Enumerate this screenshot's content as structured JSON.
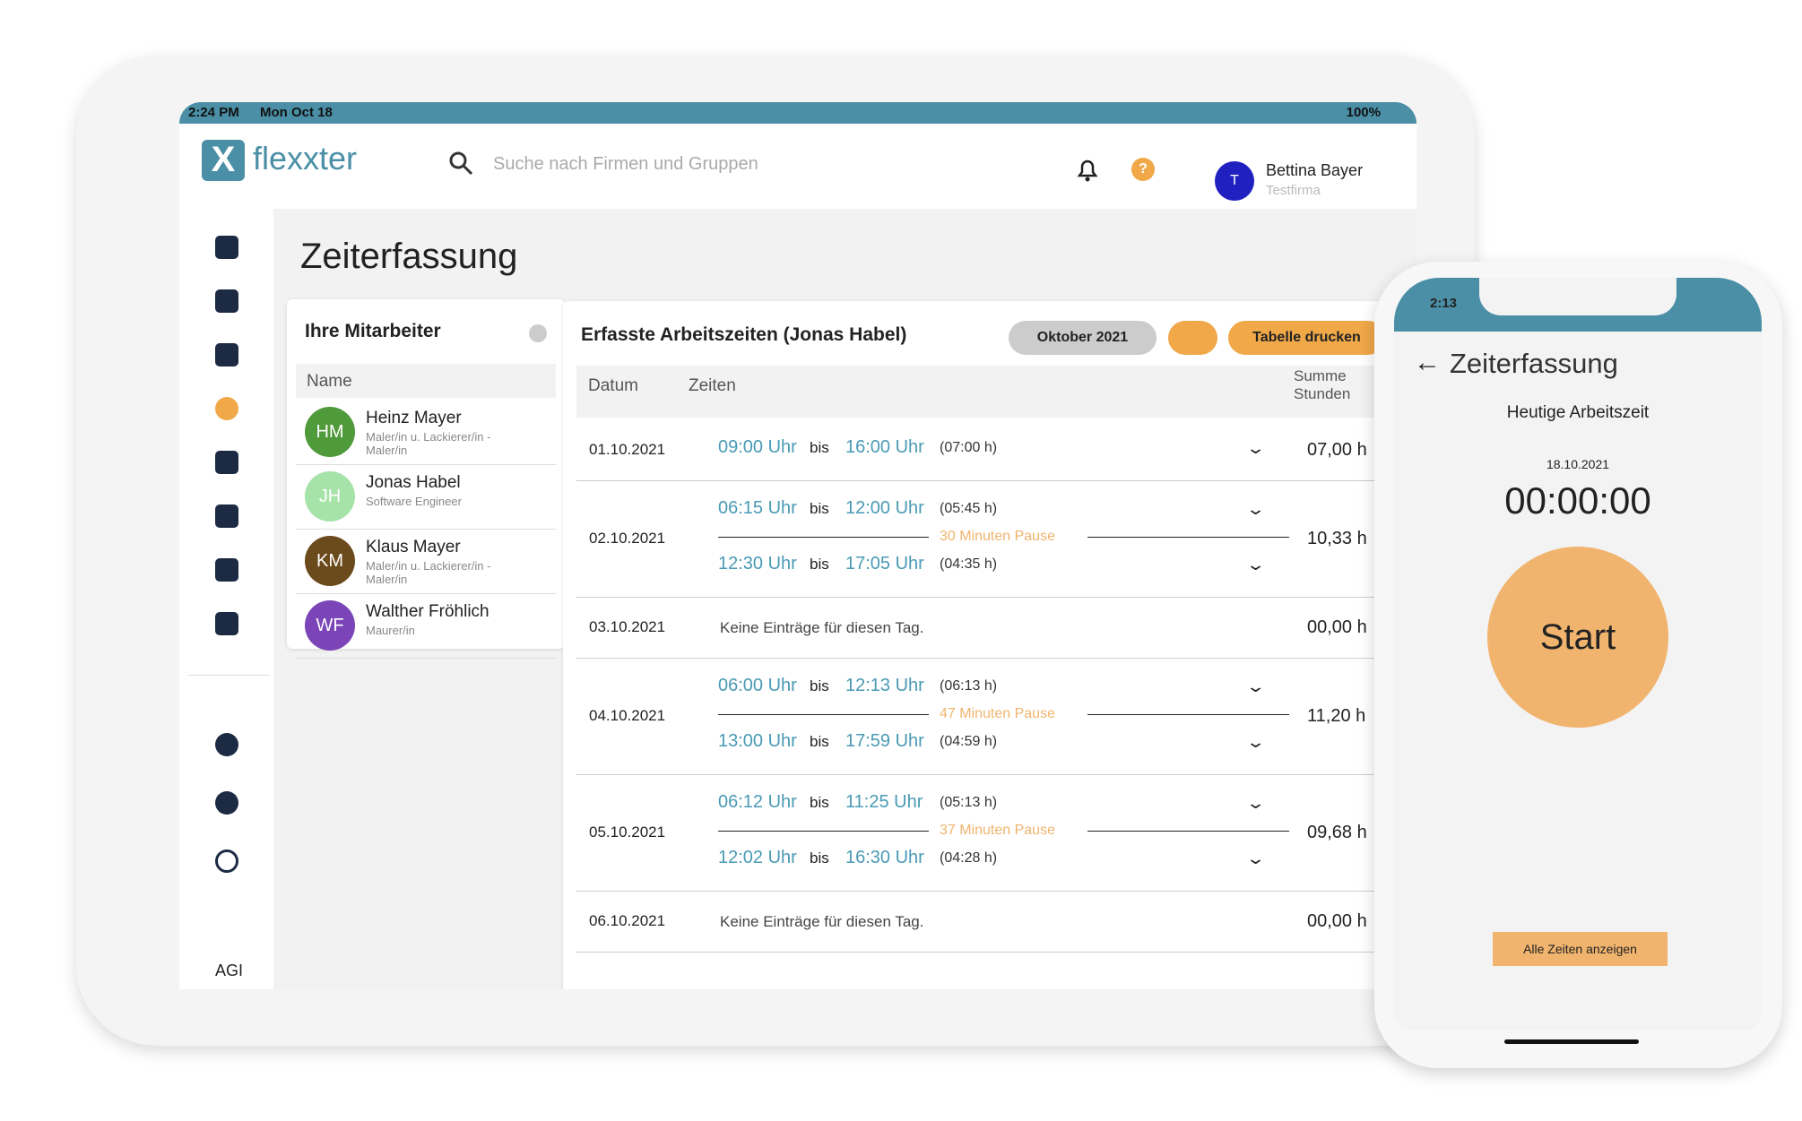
{
  "tablet": {
    "status": {
      "time": "2:24 PM",
      "date": "Mon Oct 18",
      "battery": "100%"
    },
    "logo": "flexxter",
    "search_placeholder": "Suche nach Firmen und Gruppen",
    "user": {
      "initial": "T",
      "name": "Bettina Bayer",
      "company": "Testfirma"
    },
    "help": "?",
    "page_title": "Zeiterfassung",
    "sidebar_footer": "AGI",
    "employees": {
      "title": "Ihre Mitarbeiter",
      "column": "Name",
      "items": [
        {
          "initials": "HM",
          "name": "Heinz Mayer",
          "role": "Maler/in u. Lackierer/in - Maler/in",
          "color": "#4f9a3a"
        },
        {
          "initials": "JH",
          "name": "Jonas Habel",
          "role": "Software Engineer",
          "color": "#a6e3a8"
        },
        {
          "initials": "KM",
          "name": "Klaus Mayer",
          "role": "Maler/in u. Lackierer/in - Maler/in",
          "color": "#6b4a1c"
        },
        {
          "initials": "WF",
          "name": "Walther Fröhlich",
          "role": "Maurer/in",
          "color": "#7b45b8"
        }
      ]
    },
    "times": {
      "title": "Erfasste Arbeitszeiten (Jonas Habel)",
      "month_button": "Oktober 2021",
      "print_button": "Tabelle drucken",
      "columns": [
        "Datum",
        "Zeiten",
        "Summe Stunden"
      ],
      "separator": "bis",
      "rows": [
        {
          "date": "01.10.2021",
          "entries": [
            {
              "start": "09:00 Uhr",
              "end": "16:00 Uhr",
              "duration": "(07:00 h)"
            }
          ],
          "sum": "07,00 h"
        },
        {
          "date": "02.10.2021",
          "entries": [
            {
              "start": "06:15 Uhr",
              "end": "12:00 Uhr",
              "duration": "(05:45 h)"
            },
            {
              "start": "12:30 Uhr",
              "end": "17:05 Uhr",
              "duration": "(04:35 h)"
            }
          ],
          "pause": "30 Minuten Pause",
          "sum": "10,33 h"
        },
        {
          "date": "03.10.2021",
          "note": "Keine Einträge für diesen Tag.",
          "sum": "00,00 h"
        },
        {
          "date": "04.10.2021",
          "entries": [
            {
              "start": "06:00 Uhr",
              "end": "12:13 Uhr",
              "duration": "(06:13 h)"
            },
            {
              "start": "13:00 Uhr",
              "end": "17:59 Uhr",
              "duration": "(04:59 h)"
            }
          ],
          "pause": "47 Minuten Pause",
          "sum": "11,20 h"
        },
        {
          "date": "05.10.2021",
          "entries": [
            {
              "start": "06:12 Uhr",
              "end": "11:25 Uhr",
              "duration": "(05:13 h)"
            },
            {
              "start": "12:02 Uhr",
              "end": "16:30 Uhr",
              "duration": "(04:28 h)"
            }
          ],
          "pause": "37 Minuten Pause",
          "sum": "09,68 h"
        },
        {
          "date": "06.10.2021",
          "note": "Keine Einträge für diesen Tag.",
          "sum": "00,00 h"
        }
      ]
    }
  },
  "phone": {
    "time": "2:13",
    "title": "Zeiterfassung",
    "subtitle": "Heutige Arbeitszeit",
    "date": "18.10.2021",
    "timer": "00:00:00",
    "start_button": "Start",
    "all_times_button": "Alle Zeiten anzeigen"
  }
}
